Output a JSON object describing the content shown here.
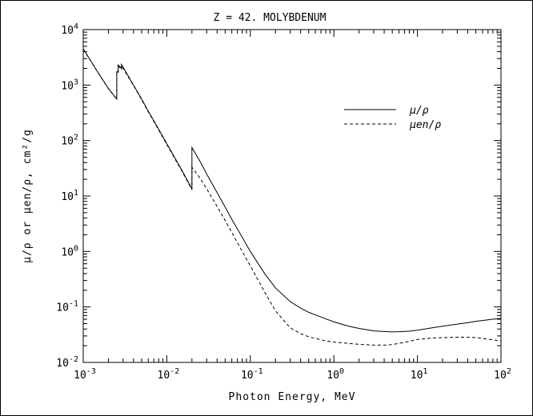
{
  "chart_data": {
    "type": "line",
    "title": "Z = 42.  MOLYBDENUM",
    "xlabel": "Photon Energy, MeV",
    "ylabel": "μ/ρ  or  μen/ρ,  cm²/g",
    "x_scale": "log",
    "y_scale": "log",
    "xlim": [
      0.001,
      100
    ],
    "ylim": [
      0.01,
      10000
    ],
    "x_ticks": [
      {
        "value": 0.001,
        "base": "10",
        "exp": "-3"
      },
      {
        "value": 0.01,
        "base": "10",
        "exp": "-2"
      },
      {
        "value": 0.1,
        "base": "10",
        "exp": "-1"
      },
      {
        "value": 1,
        "base": "10",
        "exp": "0"
      },
      {
        "value": 10,
        "base": "10",
        "exp": "1"
      },
      {
        "value": 100,
        "base": "10",
        "exp": "2"
      }
    ],
    "y_ticks": [
      {
        "value": 0.01,
        "base": "10",
        "exp": "-2"
      },
      {
        "value": 0.1,
        "base": "10",
        "exp": "-1"
      },
      {
        "value": 1,
        "base": "10",
        "exp": "0"
      },
      {
        "value": 10,
        "base": "10",
        "exp": "1"
      },
      {
        "value": 100,
        "base": "10",
        "exp": "2"
      },
      {
        "value": 1000,
        "base": "10",
        "exp": "3"
      },
      {
        "value": 10000,
        "base": "10",
        "exp": "4"
      }
    ],
    "legend_position": "upper-right",
    "series": [
      {
        "name": "μ/ρ",
        "style": "solid",
        "x": [
          0.001,
          0.0015,
          0.002,
          0.00252,
          0.00252,
          0.00262,
          0.00262,
          0.00287,
          0.00287,
          0.003,
          0.004,
          0.005,
          0.006,
          0.008,
          0.01,
          0.015,
          0.02,
          0.02,
          0.025,
          0.03,
          0.04,
          0.05,
          0.06,
          0.08,
          0.1,
          0.15,
          0.2,
          0.3,
          0.4,
          0.5,
          0.6,
          0.8,
          1,
          1.5,
          2,
          3,
          4,
          5,
          6,
          8,
          10,
          15,
          20,
          30,
          40,
          50,
          60,
          80,
          100
        ],
        "y": [
          4500,
          1700,
          870,
          560,
          1750,
          1700,
          2300,
          2000,
          2350,
          2100,
          1000,
          560,
          340,
          160,
          88,
          30,
          13.5,
          75,
          42,
          25,
          11.5,
          6.3,
          3.8,
          1.8,
          1.0,
          0.39,
          0.22,
          0.125,
          0.095,
          0.08,
          0.072,
          0.061,
          0.054,
          0.045,
          0.041,
          0.037,
          0.036,
          0.0355,
          0.0357,
          0.0365,
          0.038,
          0.042,
          0.045,
          0.049,
          0.052,
          0.055,
          0.057,
          0.06,
          0.062
        ]
      },
      {
        "name": "μen/ρ",
        "style": "dashed",
        "x": [
          0.001,
          0.0015,
          0.002,
          0.00252,
          0.00252,
          0.00262,
          0.00262,
          0.00287,
          0.00287,
          0.003,
          0.004,
          0.005,
          0.006,
          0.008,
          0.01,
          0.015,
          0.02,
          0.02,
          0.025,
          0.03,
          0.04,
          0.05,
          0.06,
          0.08,
          0.1,
          0.15,
          0.2,
          0.3,
          0.4,
          0.5,
          0.6,
          0.8,
          1,
          1.5,
          2,
          3,
          4,
          5,
          6,
          8,
          10,
          15,
          20,
          30,
          40,
          50,
          60,
          80,
          100
        ],
        "y": [
          4450,
          1680,
          860,
          555,
          1700,
          1650,
          2200,
          1900,
          2250,
          2000,
          980,
          545,
          330,
          155,
          85,
          29,
          13,
          33,
          21,
          13.5,
          6.5,
          3.6,
          2.2,
          1.0,
          0.55,
          0.18,
          0.085,
          0.042,
          0.033,
          0.029,
          0.027,
          0.0245,
          0.0232,
          0.022,
          0.0212,
          0.0205,
          0.0205,
          0.021,
          0.022,
          0.024,
          0.026,
          0.0275,
          0.028,
          0.0285,
          0.0285,
          0.028,
          0.027,
          0.0255,
          0.0245
        ]
      }
    ]
  }
}
